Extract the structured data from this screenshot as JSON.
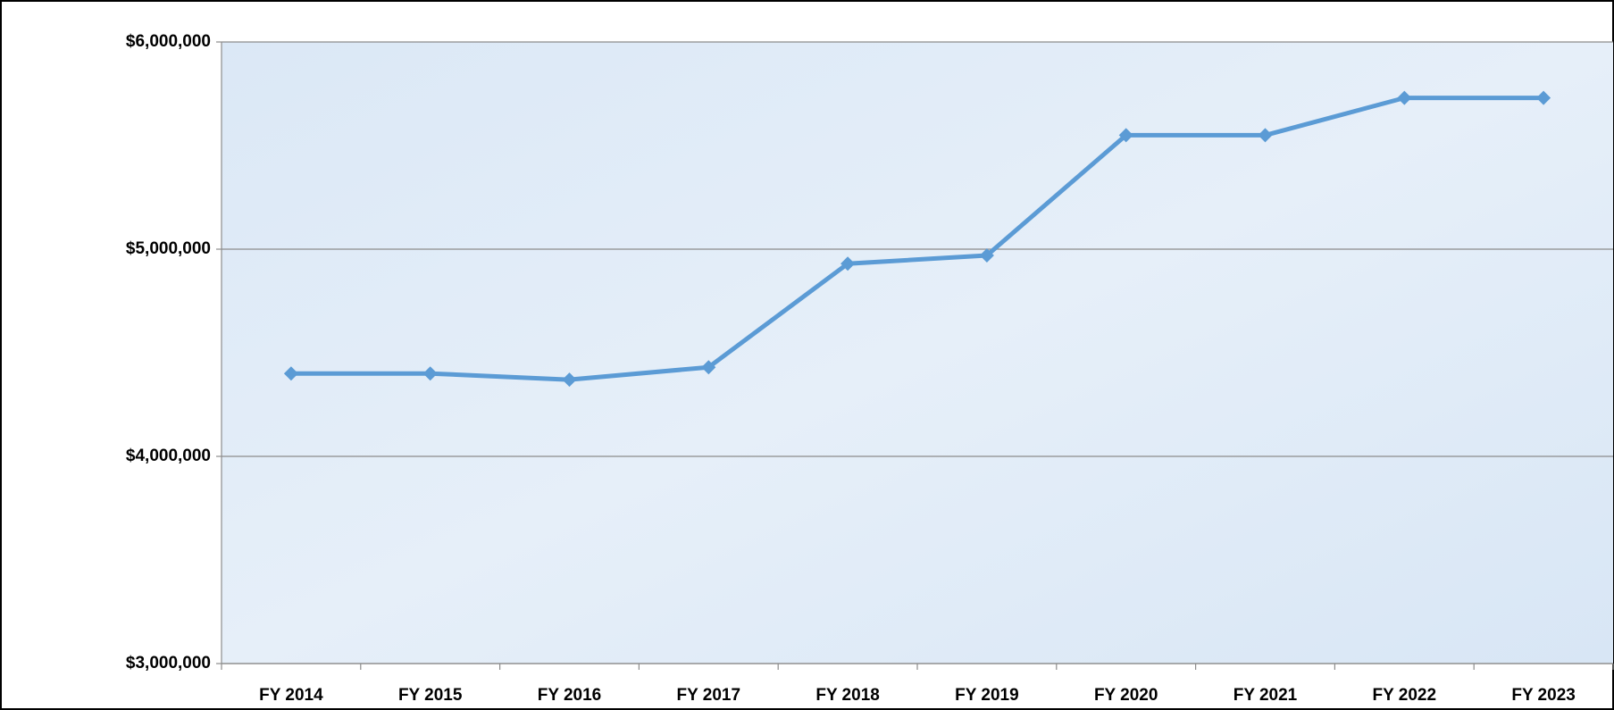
{
  "chart_data": {
    "type": "line",
    "categories": [
      "FY 2014",
      "FY 2015",
      "FY 2016",
      "FY 2017",
      "FY 2018",
      "FY 2019",
      "FY 2020",
      "FY 2021",
      "FY 2022",
      "FY 2023"
    ],
    "series": [
      {
        "color": "#5b9bd5",
        "values": [
          4400000,
          4400000,
          4370000,
          4430000,
          4930000,
          4970000,
          5550000,
          5550000,
          5730000,
          5730000
        ]
      }
    ],
    "ylim": [
      3000000,
      6000000
    ],
    "yticks": [
      {
        "value": 3000000,
        "label": "$3,000,000"
      },
      {
        "value": 4000000,
        "label": "$4,000,000"
      },
      {
        "value": 5000000,
        "label": "$5,000,000"
      },
      {
        "value": 6000000,
        "label": "$6,000,000"
      }
    ],
    "grid": true
  }
}
